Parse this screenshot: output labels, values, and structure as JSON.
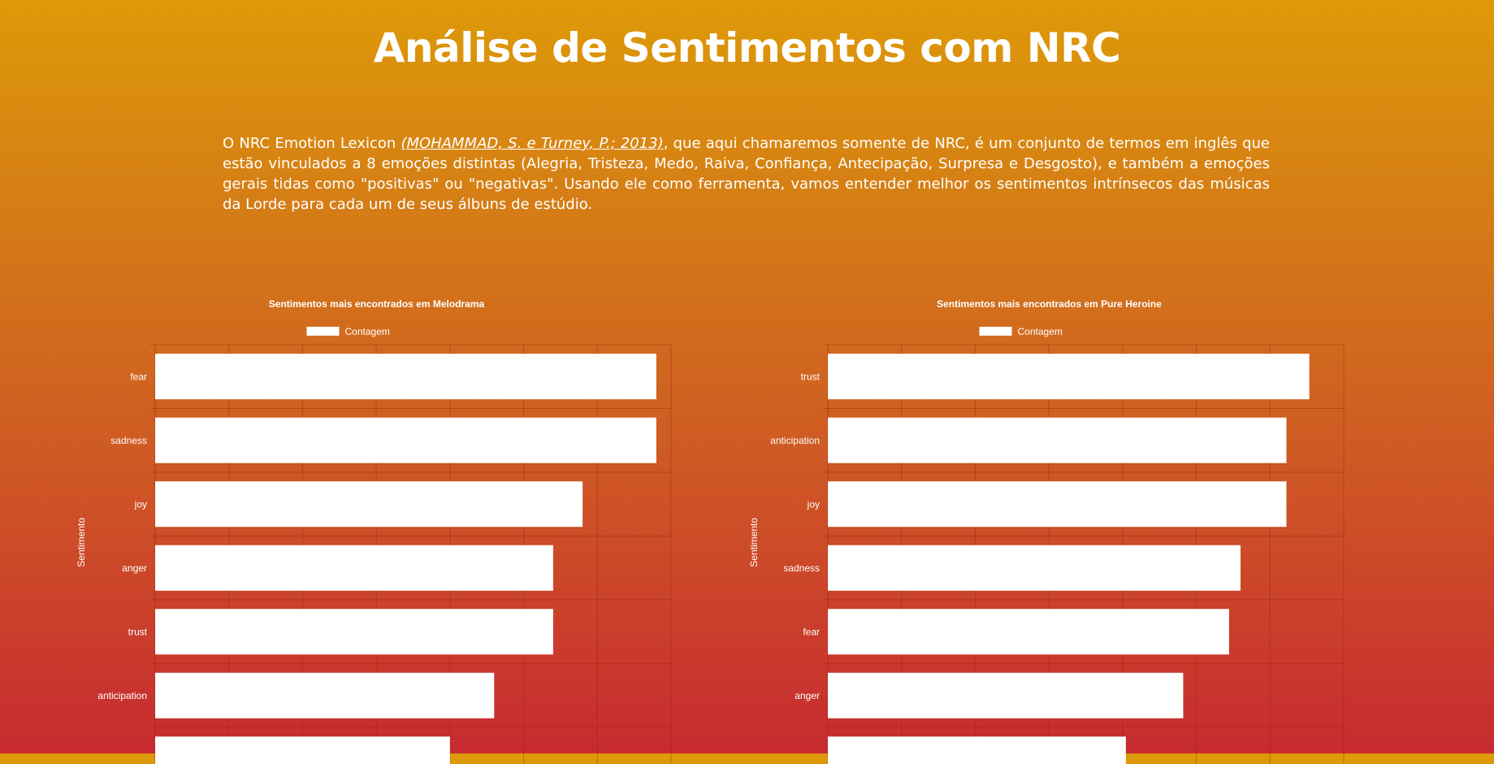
{
  "page": {
    "title": "Análise de Sentimentos com NRC",
    "intro_before": "O NRC Emotion Lexicon ",
    "intro_link": "(MOHAMMAD, S. e Turney, P.; 2013)",
    "intro_after": ", que aqui chamaremos somente de NRC, é um conjunto de termos em inglês que estão vinculados a 8 emoções distintas (Alegria, Tristeza, Medo, Raiva, Confiança, Antecipação, Surpresa e Desgosto), e também a emoções gerais tidas como \"positivas\" ou \"negativas\". Usando ele como ferramenta, vamos entender melhor os sentimentos intrínsecos das músicas da Lorde para cada um de seus álbuns de estúdio."
  },
  "colors": {
    "bar": "#ffffff",
    "bg_top": "#de9a08",
    "bg_bottom": "#c72a30"
  },
  "chart_data": [
    {
      "type": "bar",
      "orientation": "horizontal",
      "title": "Sentimentos mais encontrados em Melodrama",
      "legend": "Contagem",
      "ylabel": "Sentimento",
      "categories": [
        "fear",
        "sadness",
        "joy",
        "anger",
        "trust",
        "anticipation",
        ""
      ],
      "values": [
        34,
        34,
        29,
        27,
        27,
        23,
        20
      ],
      "xlim": [
        0,
        35
      ]
    },
    {
      "type": "bar",
      "orientation": "horizontal",
      "title": "Sentimentos mais encontrados em Pure Heroine",
      "legend": "Contagem",
      "ylabel": "Sentimento",
      "categories": [
        "trust",
        "anticipation",
        "joy",
        "sadness",
        "fear",
        "anger",
        ""
      ],
      "values": [
        42,
        40,
        40,
        36,
        35,
        31,
        26
      ],
      "xlim": [
        0,
        45
      ]
    }
  ]
}
